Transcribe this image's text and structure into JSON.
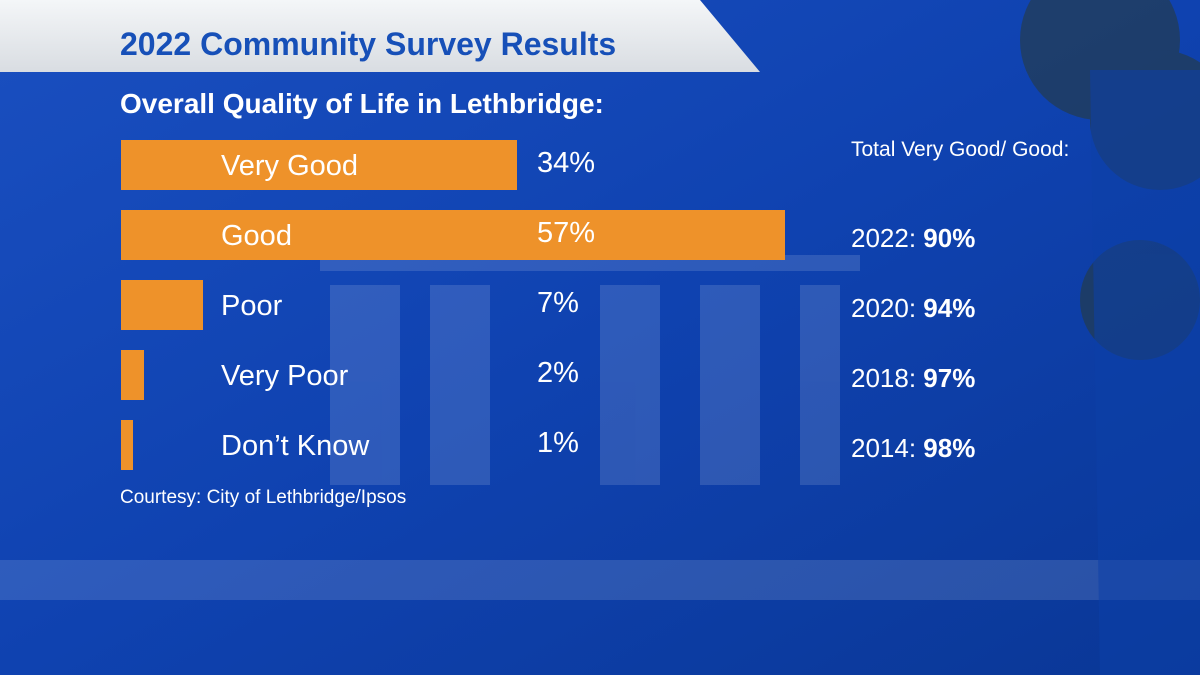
{
  "header": {
    "title": "2022 Community Survey Results",
    "subtitle": "Overall Quality of Life in Lethbridge:"
  },
  "chart_data": {
    "type": "bar",
    "orientation": "horizontal",
    "title": "Overall Quality of Life in Lethbridge:",
    "categories": [
      "Very Good",
      "Good",
      "Poor",
      "Very Poor",
      "Don’t Know"
    ],
    "values": [
      34,
      57,
      7,
      2,
      1
    ],
    "value_labels": [
      "34%",
      "57%",
      "7%",
      "2%",
      "1%"
    ],
    "unit": "%",
    "xlim": [
      0,
      57
    ],
    "grid": false,
    "legend": "none"
  },
  "sidebar": {
    "heading": "Total Very Good/ Good:",
    "items": [
      {
        "year": "2022:",
        "value": "90%"
      },
      {
        "year": "2020:",
        "value": "94%"
      },
      {
        "year": "2018:",
        "value": "97%"
      },
      {
        "year": "2014:",
        "value": "98%"
      }
    ]
  },
  "source": "Courtesy: City of Lethbridge/Ipsos",
  "colors": {
    "bar": "#ee922a",
    "background": "#0d3fa8",
    "title_text": "#1750b8",
    "text": "#ffffff"
  }
}
